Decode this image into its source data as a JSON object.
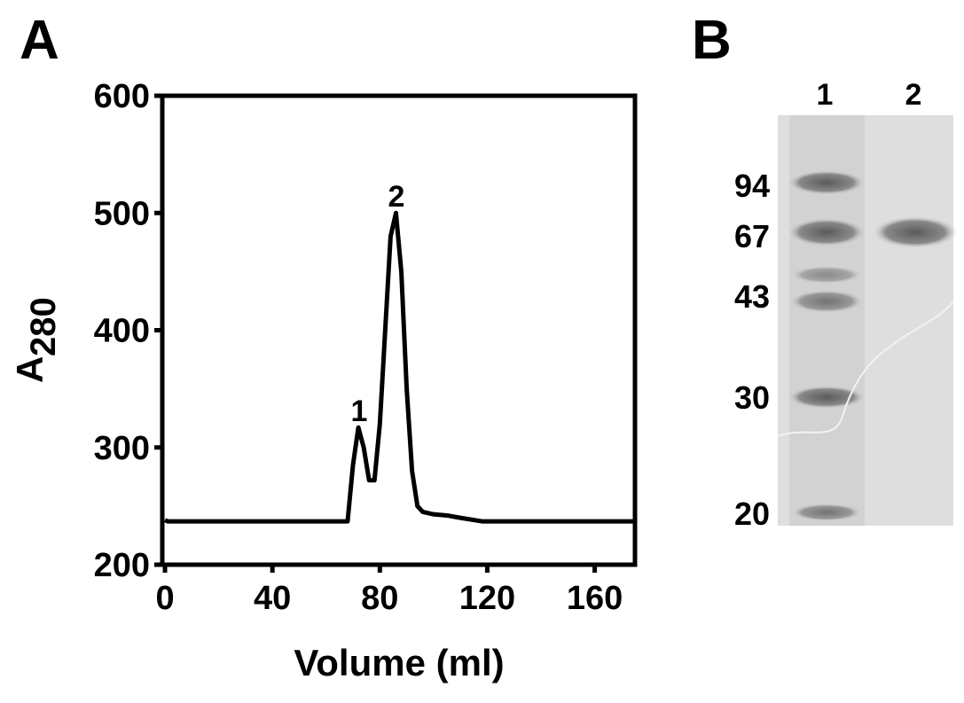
{
  "panel_a": {
    "label": "A"
  },
  "chart_data": {
    "type": "line",
    "xlabel": "Volume (ml)",
    "ylabel": "A",
    "ylabel_subscript": "280",
    "annotations": [
      "1",
      "2"
    ],
    "x": [
      0,
      1,
      68,
      70,
      72,
      74,
      76,
      78,
      80,
      82,
      84,
      86,
      88,
      90,
      92,
      94,
      96,
      100,
      105,
      110,
      118,
      175
    ],
    "series": [
      {
        "color": "#000000",
        "values": [
          238,
          237,
          237,
          285,
          317,
          300,
          272,
          272,
          320,
          400,
          480,
          500,
          450,
          350,
          280,
          250,
          245,
          243,
          242,
          240,
          237,
          237
        ]
      }
    ],
    "xlim": [
      -1,
      175
    ],
    "xticks": [
      0,
      40,
      80,
      120,
      160
    ],
    "ylim": [
      200,
      600
    ],
    "yticks": [
      200,
      300,
      400,
      500,
      600
    ]
  },
  "panel_b": {
    "label": "B",
    "lanes": [
      "1",
      "2"
    ],
    "markers": [
      "94",
      "67",
      "43",
      "30",
      "20"
    ]
  }
}
